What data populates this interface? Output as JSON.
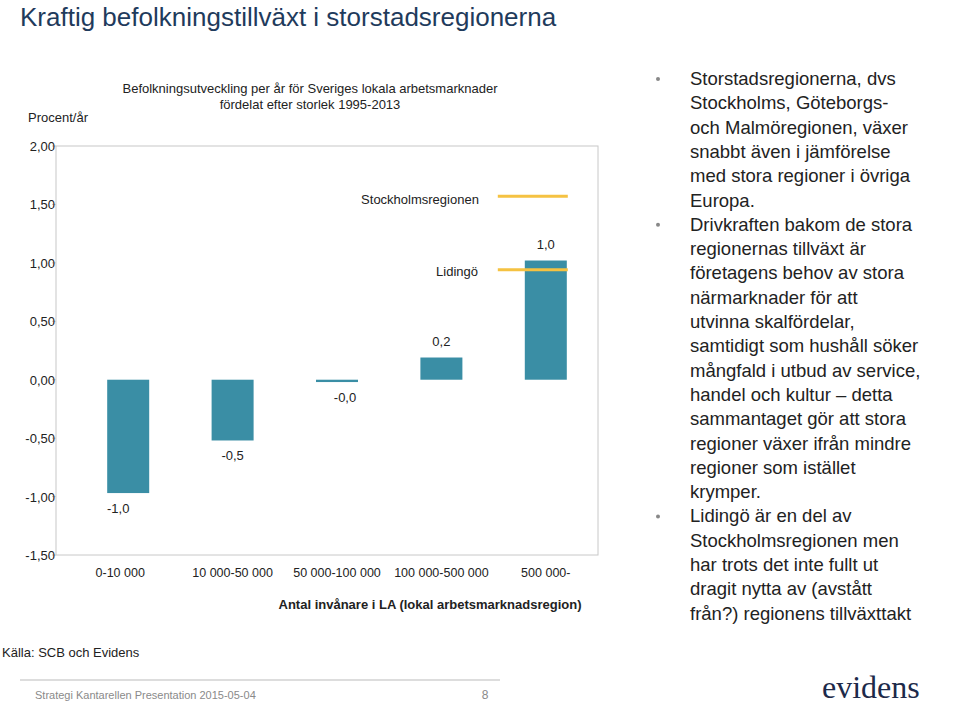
{
  "chart_data": {
    "type": "bar",
    "title": [
      "Befolkningsutveckling per år för Sveriges lokala arbetsmarknader",
      "fördelat efter storlek 1995-2013"
    ],
    "y_label": "Procent/år",
    "x_label": "Antal invånare i LA (lokal arbetsmarknadsregion)",
    "categories": [
      "0-10 000",
      "10 000-50 000",
      "50 000-100 000",
      "100 000-500 000",
      "500 000-"
    ],
    "values": [
      -0.97,
      -0.52,
      -0.02,
      0.19,
      1.02
    ],
    "value_labels": [
      "-1,0",
      "-0,5",
      "-0,0",
      "0,2",
      "1,0"
    ],
    "data_labels": true,
    "color": "#3a8ea5",
    "ylim": [
      -1.5,
      2
    ],
    "yticks": [
      {
        "value": 2,
        "label": "2,00"
      },
      {
        "value": 1.5,
        "label": "1,50"
      },
      {
        "value": 1,
        "label": "1,00"
      },
      {
        "value": 0.5,
        "label": "0,50"
      },
      {
        "value": 0,
        "label": "0,00"
      },
      {
        "value": -0.5,
        "label": "-0,50"
      },
      {
        "value": -1,
        "label": "-1,00"
      },
      {
        "value": -1.5,
        "label": "-1,50"
      }
    ],
    "grid": false,
    "reference_lines": [
      {
        "label": "Stockholmsregionen",
        "value": 1.57,
        "color": "#f5c242"
      },
      {
        "label": "Lidingö",
        "value": 0.94,
        "color": "#f5c242"
      }
    ]
  },
  "page": {
    "title": "Kraftig befolkningstillväxt i storstadsregionerna",
    "source": "Källa: SCB och Evidens",
    "bullets": [
      [
        "Storstadsregionerna, dvs",
        "Stockholms, Göteborgs-",
        "och Malmöregionen, växer",
        "snabbt även i jämförelse",
        "med stora regioner i övriga",
        "Europa."
      ],
      [
        "Drivkraften bakom de stora",
        "regionernas tillväxt är",
        "företagens behov av stora",
        "närmarknader för att",
        "utvinna skalfördelar,",
        "samtidigt som hushåll söker",
        "mångfald i utbud av service,",
        "handel och kultur – detta",
        "sammantaget gör att stora",
        "regioner växer ifrån mindre",
        "regioner som istället",
        "krymper."
      ],
      [
        "Lidingö är en del av",
        "Stockholmsregionen men",
        "har trots det inte fullt ut",
        "dragit nytta av (avstått",
        "från?) regionens tillväxttakt"
      ]
    ],
    "footer": "Strategi Kantarellen Presentation 2015-05-04",
    "page_number": "8",
    "logo": "evidens"
  }
}
